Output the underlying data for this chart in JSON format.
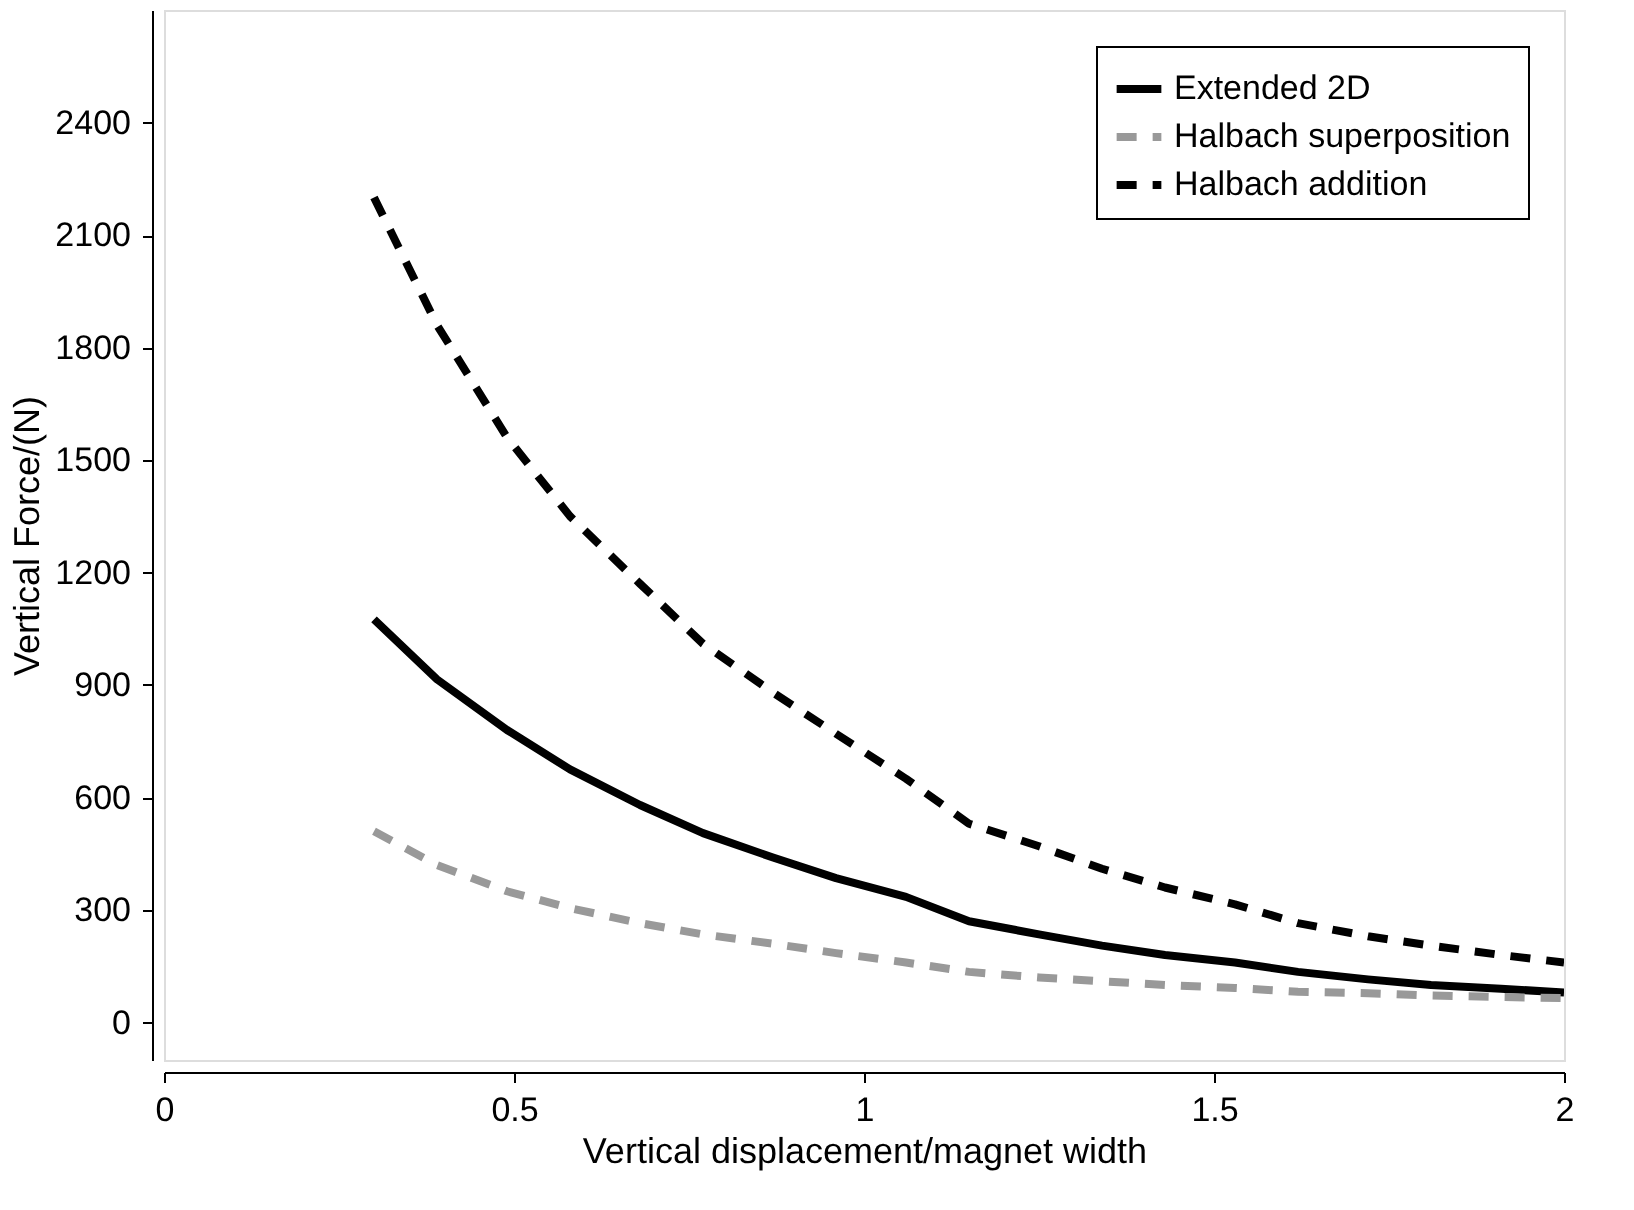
{
  "chart_data": {
    "type": "line",
    "xlabel": "Vertical displacement/magnet width",
    "ylabel": "Vertical Force/(N)",
    "x": [
      0.3,
      0.39,
      0.49,
      0.58,
      0.68,
      0.77,
      0.87,
      0.96,
      1.06,
      1.15,
      1.25,
      1.34,
      1.43,
      1.53,
      1.62,
      1.72,
      1.81,
      1.91,
      2.0
    ],
    "series": [
      {
        "name": "Extended 2D",
        "color": "#000000",
        "line_style": "solid",
        "values": [
          1075,
          915,
          780,
          675,
          580,
          505,
          440,
          385,
          335,
          270,
          235,
          205,
          180,
          160,
          135,
          115,
          100,
          90,
          80
        ]
      },
      {
        "name": "Halbach superposition",
        "color": "#999999",
        "line_style": "dashed",
        "values": [
          510,
          420,
          350,
          305,
          265,
          235,
          210,
          185,
          160,
          135,
          120,
          110,
          100,
          92,
          82,
          78,
          72,
          68,
          65
        ]
      },
      {
        "name": "Halbach addition",
        "color": "#000000",
        "line_style": "dashed",
        "values": [
          2200,
          1860,
          1560,
          1350,
          1170,
          1010,
          880,
          770,
          650,
          530,
          470,
          410,
          360,
          315,
          265,
          230,
          205,
          180,
          160
        ]
      }
    ],
    "xlim": [
      0,
      2
    ],
    "xticks": [
      0,
      0.5,
      1,
      1.5,
      2
    ],
    "ylim": [
      -100,
      2700
    ],
    "yticks": [
      0,
      300,
      600,
      900,
      1200,
      1500,
      1800,
      2100,
      2400
    ],
    "grid": false,
    "legend": "top right",
    "marker": "none"
  }
}
